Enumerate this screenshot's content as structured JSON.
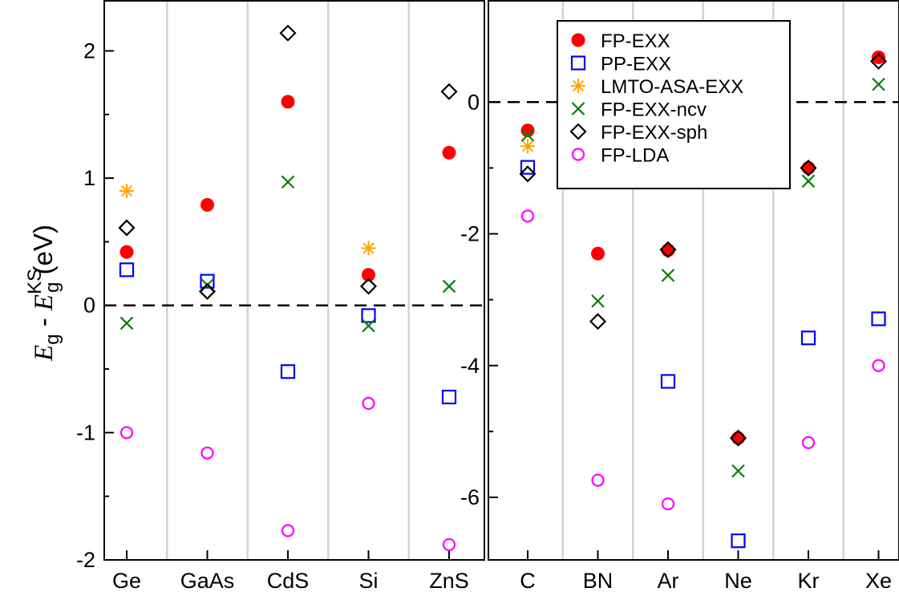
{
  "chart_data": [
    {
      "type": "scatter",
      "panel": "left",
      "categories": [
        "Ge",
        "GaAs",
        "CdS",
        "Si",
        "ZnS"
      ],
      "ylabel": {
        "main1": "E",
        "sub1": "g",
        "sep": " - ",
        "main2": "E",
        "sub2": "g",
        "sup2": "KS",
        "unit": "(eV)"
      },
      "ylim": [
        -2,
        2.4
      ],
      "yticks": [
        -2,
        -1,
        0,
        1,
        2
      ],
      "series": [
        {
          "name": "FP-EXX",
          "values": [
            0.42,
            0.79,
            1.6,
            0.24,
            1.2
          ]
        },
        {
          "name": "PP-EXX",
          "values": [
            0.28,
            0.19,
            -0.52,
            -0.08,
            -0.72
          ]
        },
        {
          "name": "LMTO-ASA-EXX",
          "values": [
            0.9,
            null,
            null,
            0.45,
            null
          ]
        },
        {
          "name": "FP-EXX-ncv",
          "values": [
            -0.14,
            0.16,
            0.97,
            -0.16,
            0.15
          ]
        },
        {
          "name": "FP-EXX-sph",
          "values": [
            0.61,
            0.11,
            2.14,
            0.15,
            1.68
          ]
        },
        {
          "name": "FP-LDA",
          "values": [
            -1.0,
            -1.16,
            -1.77,
            -0.77,
            -1.88
          ]
        }
      ]
    },
    {
      "type": "scatter",
      "panel": "right",
      "categories": [
        "C",
        "BN",
        "Ar",
        "Ne",
        "Kr",
        "Xe"
      ],
      "ylim": [
        -6.95,
        1.55
      ],
      "yticks": [
        -6,
        -4,
        -2,
        0
      ],
      "series": [
        {
          "name": "FP-EXX",
          "values": [
            -0.43,
            -2.3,
            -2.25,
            -5.1,
            -1.0,
            0.68
          ]
        },
        {
          "name": "PP-EXX",
          "values": [
            -0.99,
            null,
            -4.24,
            -6.66,
            -3.58,
            -3.29
          ]
        },
        {
          "name": "LMTO-ASA-EXX",
          "values": [
            -0.67,
            null,
            null,
            null,
            null,
            null
          ]
        },
        {
          "name": "FP-EXX-ncv",
          "values": [
            -0.5,
            -3.02,
            -2.63,
            -5.6,
            -1.2,
            0.27
          ]
        },
        {
          "name": "FP-EXX-sph",
          "values": [
            -1.09,
            -3.33,
            -2.24,
            -5.1,
            -1.0,
            0.62
          ]
        },
        {
          "name": "FP-LDA",
          "values": [
            -1.73,
            -5.74,
            -6.1,
            null,
            -5.17,
            -4.0
          ]
        }
      ]
    }
  ],
  "legend": {
    "placement": "top-left of right panel",
    "entries": [
      {
        "label": "FP-EXX",
        "marker": "filled-circle",
        "color": "#ff0000"
      },
      {
        "label": "PP-EXX",
        "marker": "open-square",
        "color": "#0000ff"
      },
      {
        "label": "LMTO-ASA-EXX",
        "marker": "asterisk",
        "color": "#ffa500"
      },
      {
        "label": "FP-EXX-ncv",
        "marker": "cross",
        "color": "#008000"
      },
      {
        "label": "FP-EXX-sph",
        "marker": "open-diamond",
        "color": "#000000"
      },
      {
        "label": "FP-LDA",
        "marker": "open-circle",
        "color": "#ff00ff"
      }
    ]
  },
  "colors": {
    "FP-EXX": "#ff0000",
    "PP-EXX": "#0000ff",
    "LMTO-ASA-EXX": "#ffa500",
    "FP-EXX-ncv": "#008000",
    "FP-EXX-sph": "#000000",
    "FP-LDA": "#ff00ff",
    "separator": "#d3d3d3"
  },
  "grid": false,
  "zero_line": "dashed"
}
